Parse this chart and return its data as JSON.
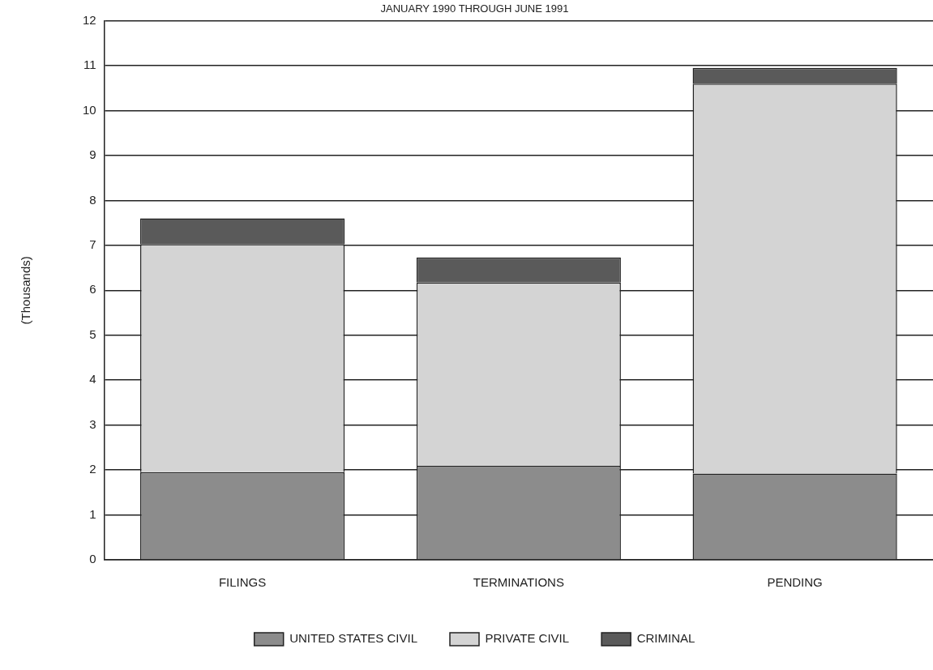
{
  "chart_data": {
    "type": "bar",
    "title": "JANUARY 1990 THROUGH JUNE 1991",
    "ylabel": "(Thousands)",
    "categories": [
      "FILINGS",
      "TERMINATIONS",
      "PENDING"
    ],
    "stacked": true,
    "series": [
      {
        "name": "UNITED STATES CIVIL",
        "color": "#8c8c8c",
        "values": [
          1.95,
          2.09,
          1.92
        ]
      },
      {
        "name": "PRIVATE CIVIL",
        "color": "#d4d4d4",
        "values": [
          5.08,
          4.08,
          8.68
        ]
      },
      {
        "name": "CRIMINAL",
        "color": "#5a5a5a",
        "values": [
          0.57,
          0.56,
          0.35
        ]
      }
    ],
    "ylim": [
      0,
      12
    ],
    "yticks": [
      0,
      1,
      2,
      3,
      4,
      5,
      6,
      7,
      8,
      9,
      10,
      11,
      12
    ],
    "grid": "y",
    "legend": "bottom"
  }
}
